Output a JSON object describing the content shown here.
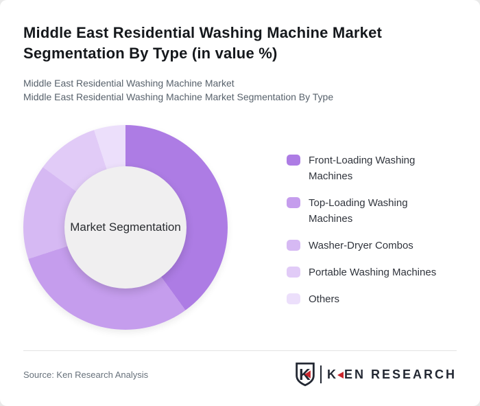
{
  "page": {
    "title": "Middle East Residential Washing Machine Market Segmentation By Type (in value %)",
    "subtitle_line1": "Middle East Residential Washing Machine Market",
    "subtitle_line2": "Middle East Residential Washing Machine Market Segmentation By Type"
  },
  "chart_data": {
    "type": "pie",
    "variant": "donut",
    "title": "Middle East Residential Washing Machine Market Segmentation By Type (in value %)",
    "units": "value %",
    "center_label": "Market Segmentation",
    "start_angle_deg": 0,
    "direction": "clockwise",
    "legend_position": "right",
    "segments": [
      {
        "label": "Front-Loading Washing Machines",
        "value": 40,
        "color": "#ad7ce4"
      },
      {
        "label": "Top-Loading Washing Machines",
        "value": 30,
        "color": "#c59ded"
      },
      {
        "label": "Washer-Dryer Combos",
        "value": 15,
        "color": "#d6b9f3"
      },
      {
        "label": "Portable Washing Machines",
        "value": 10,
        "color": "#e1cbf7"
      },
      {
        "label": "Others",
        "value": 5,
        "color": "#ecdffb"
      }
    ],
    "hole_color": "#f0eff0"
  },
  "footer": {
    "source": "Source: Ken Research Analysis",
    "logo": {
      "monogram_letter": "K",
      "brand_k": "K",
      "brand_rest": "EN RESEARCH",
      "text_color": "#232833",
      "accent_color": "#c9252c"
    }
  }
}
